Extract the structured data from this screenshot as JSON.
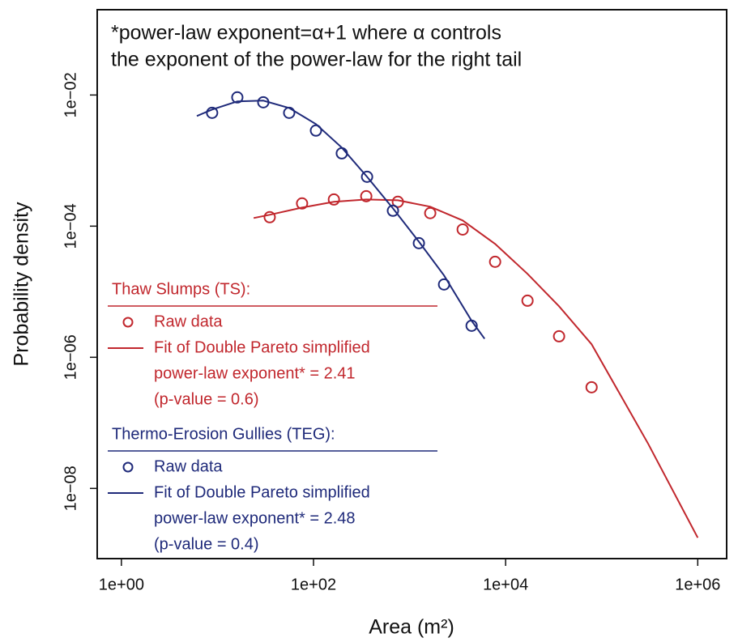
{
  "chart_data": {
    "type": "scatter",
    "log_x": true,
    "log_y": true,
    "x_label": "Area (m²)",
    "y_label": "Probability density",
    "annotation": [
      "*power-law exponent=α+1 where α controls",
      "the exponent of the power-law for the right tail"
    ],
    "xlim": [
      0.56,
      2000000
    ],
    "ylim": [
      8.5e-10,
      0.2
    ],
    "xticks": [
      {
        "value": 1,
        "label": "1e+00"
      },
      {
        "value": 100,
        "label": "1e+02"
      },
      {
        "value": 10000,
        "label": "1e+04"
      },
      {
        "value": 1000000,
        "label": "1e+06"
      }
    ],
    "yticks": [
      {
        "value": 1e-08,
        "label": "1e−08"
      },
      {
        "value": 1e-06,
        "label": "1e−06"
      },
      {
        "value": 0.0001,
        "label": "1e−04"
      },
      {
        "value": 0.01,
        "label": "1e−02"
      }
    ],
    "groups": [
      {
        "title": "Thaw Slumps (TS):",
        "color": "#c1272d",
        "points": {
          "name": "Raw data",
          "x": [
            35,
            76,
            163,
            354,
            755,
            1641,
            3572,
            7770,
            16900,
            36000,
            78500
          ],
          "y": [
            0.000137,
            0.000222,
            0.000255,
            0.000286,
            0.000235,
            0.000158,
            8.9e-05,
            2.86e-05,
            7.3e-06,
            2.09e-06,
            3.49e-07
          ]
        },
        "fit": {
          "name": [
            "Fit of Double Pareto simplified",
            "power-law exponent* = 2.41",
            "(p-value = 0.6)"
          ],
          "x": [
            23.8,
            35,
            76,
            163,
            354,
            755,
            1641,
            3572,
            7770,
            16900,
            36000,
            78500,
            305000,
            1000000
          ],
          "y": [
            0.000133,
            0.000149,
            0.000192,
            0.000235,
            0.000255,
            0.000248,
            0.000198,
            0.000122,
            5.35e-05,
            1.87e-05,
            6e-06,
            1.58e-06,
            4.78e-08,
            1.77e-09
          ]
        }
      },
      {
        "title": "Thermo-Erosion Gullies (TEG):",
        "color": "#1f2a7a",
        "points": {
          "name": "Raw data",
          "x": [
            8.8,
            16.1,
            30,
            55.8,
            106,
            197,
            361,
            671,
            1250,
            2285,
            4425
          ],
          "y": [
            0.00535,
            0.0092,
            0.00774,
            0.00535,
            0.00287,
            0.00129,
            0.000566,
            0.000172,
            5.5e-05,
            1.29e-05,
            3.03e-06
          ]
        },
        "fit": {
          "name": [
            "Fit of Double Pareto simplified",
            "power-law exponent* = 2.48",
            "(p-value = 0.4)"
          ],
          "x": [
            6.1,
            8.8,
            16.1,
            30,
            55.8,
            106,
            197,
            361,
            671,
            1250,
            2285,
            4425,
            6040
          ],
          "y": [
            0.00478,
            0.006,
            0.008,
            0.0082,
            0.00634,
            0.0036,
            0.00158,
            0.000566,
            0.000187,
            5.8e-05,
            1.77e-05,
            3.6e-06,
            1.92e-06
          ]
        }
      }
    ]
  }
}
